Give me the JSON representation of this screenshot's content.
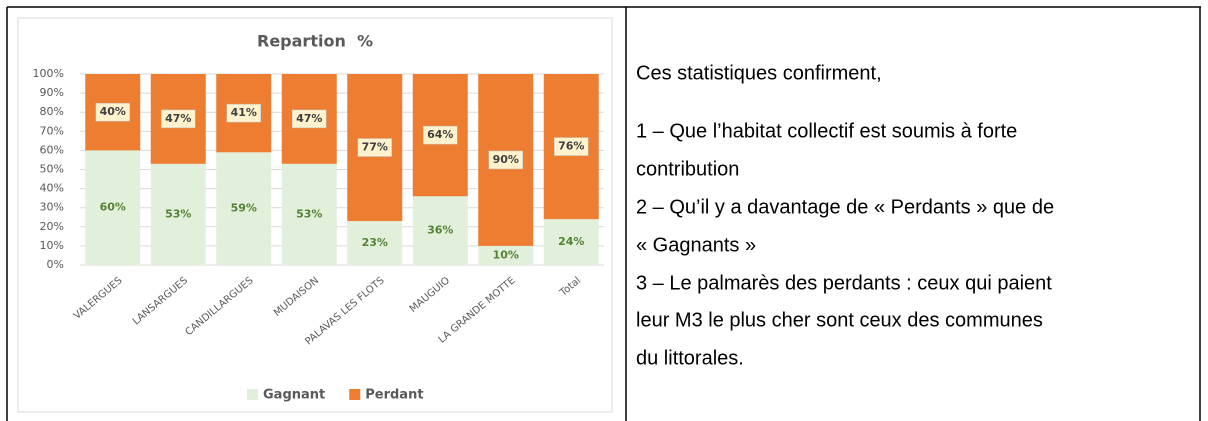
{
  "chart_data": {
    "type": "stacked_bar",
    "title": "Repartion  %",
    "categories": [
      "VALERGUES",
      "LANSARGUES",
      "CANDILLARGUES",
      "MUDAISON",
      "PALAVAS LES FLOTS",
      "MAUGUIO",
      "LA GRANDE MOTTE",
      "Total"
    ],
    "series": [
      {
        "name": "Gagnant",
        "color": "#e2efda",
        "label_color": "#548235",
        "values": [
          60,
          53,
          59,
          53,
          23,
          36,
          10,
          24
        ],
        "value_labels": [
          "60%",
          "53%",
          "59%",
          "53%",
          "23%",
          "36%",
          "10%",
          "24%"
        ]
      },
      {
        "name": "Perdant",
        "color": "#ed7d31",
        "label_color": "#404040",
        "values": [
          40,
          47,
          41,
          47,
          77,
          64,
          90,
          76
        ],
        "value_labels": [
          "40%",
          "47%",
          "41%",
          "47%",
          "77%",
          "64%",
          "90%",
          "76%"
        ]
      }
    ],
    "ylim": [
      0,
      100
    ],
    "yticks": [
      {
        "value": 0,
        "label": "0%"
      },
      {
        "value": 10,
        "label": "10%"
      },
      {
        "value": 20,
        "label": "20%"
      },
      {
        "value": 30,
        "label": "30%"
      },
      {
        "value": 40,
        "label": "40%"
      },
      {
        "value": 50,
        "label": "50%"
      },
      {
        "value": 60,
        "label": "60%"
      },
      {
        "value": 70,
        "label": "70%"
      },
      {
        "value": 80,
        "label": "80%"
      },
      {
        "value": 90,
        "label": "90%"
      },
      {
        "value": 100,
        "label": "100%"
      }
    ],
    "grid": true,
    "legend": "bottom"
  },
  "text": {
    "lines": [
      "Ces statistiques confirment,",
      "1 – Que l’habitat collectif est soumis à forte",
      "contribution",
      "2 – Qu’il y a davantage de « Perdants » que de",
      "« Gagnants »",
      "3 – Le palmarès des perdants : ceux qui paient",
      "leur M3 le plus cher sont ceux des communes",
      "du littorales."
    ]
  }
}
